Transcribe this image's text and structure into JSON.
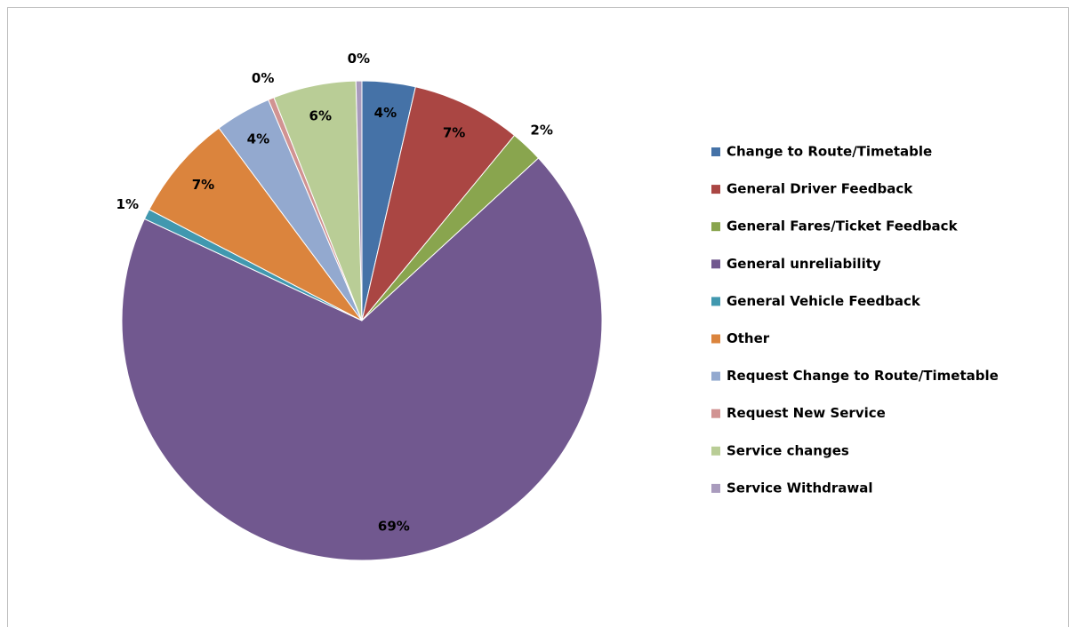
{
  "chart_data": {
    "type": "pie",
    "categories": [
      "Change to  Route/Timetable",
      "General Driver Feedback",
      "General Fares/Ticket Feedback",
      "General unreliability",
      "General Vehicle Feedback",
      "Other",
      "Request Change to Route/Timetable",
      "Request New  Service",
      "Service changes",
      "Service Withdrawal"
    ],
    "values": [
      3.6,
      7.4,
      2.2,
      69.1,
      0.7,
      7.2,
      3.8,
      0.4,
      5.6,
      0.4
    ],
    "value_labels": [
      "4%",
      "7%",
      "2%",
      "69%",
      "1%",
      "7%",
      "4%",
      "0%",
      "6%",
      "0%"
    ],
    "colors": [
      "#4572a7",
      "#aa4643",
      "#89a54e",
      "#71588f",
      "#4198af",
      "#db843d",
      "#93a9cf",
      "#d19392",
      "#b9cd96",
      "#a99bbd"
    ],
    "legend": "right"
  }
}
